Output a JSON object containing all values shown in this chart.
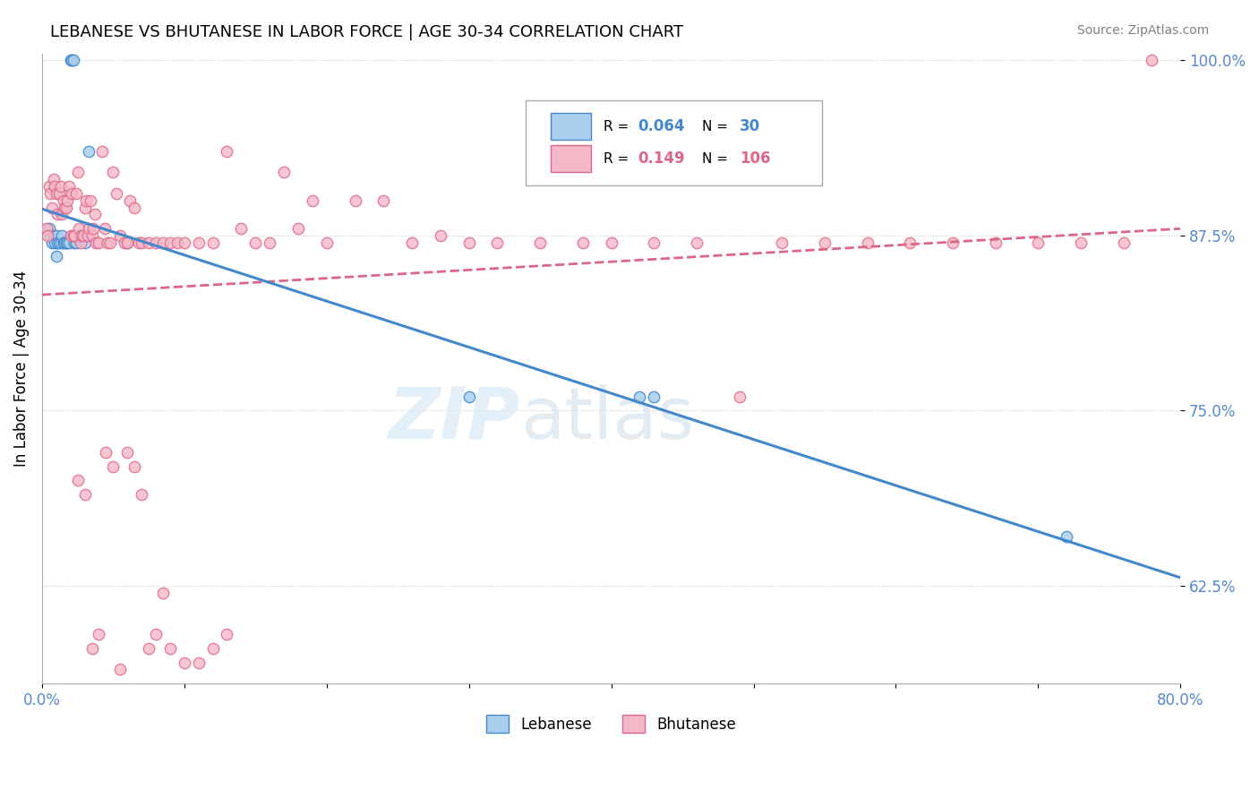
{
  "title": "LEBANESE VS BHUTANESE IN LABOR FORCE | AGE 30-34 CORRELATION CHART",
  "source": "Source: ZipAtlas.com",
  "ylabel": "In Labor Force | Age 30-34",
  "xlim": [
    0.0,
    0.8
  ],
  "ylim": [
    0.555,
    1.005
  ],
  "yticks": [
    0.625,
    0.75,
    0.875,
    1.0
  ],
  "ytick_labels": [
    "62.5%",
    "75.0%",
    "87.5%",
    "100.0%"
  ],
  "blue_color": "#aacfee",
  "pink_color": "#f5b8c8",
  "trend_blue": "#4488cc",
  "trend_pink": "#dd6688",
  "axis_label_color": "#5588cc",
  "blue_x": [
    0.005,
    0.006,
    0.007,
    0.008,
    0.009,
    0.01,
    0.01,
    0.011,
    0.012,
    0.013,
    0.014,
    0.015,
    0.016,
    0.017,
    0.018,
    0.019,
    0.02,
    0.021,
    0.022,
    0.023,
    0.024,
    0.025,
    0.03,
    0.031,
    0.033,
    0.06,
    0.3,
    0.42,
    0.43,
    0.72
  ],
  "blue_y": [
    0.88,
    0.875,
    0.87,
    0.875,
    0.87,
    0.875,
    0.86,
    0.87,
    0.87,
    0.87,
    0.875,
    0.87,
    0.87,
    0.87,
    0.87,
    0.87,
    1.0,
    1.0,
    1.0,
    0.87,
    0.87,
    0.875,
    0.87,
    0.875,
    0.935,
    0.87,
    0.76,
    0.76,
    0.76,
    0.66
  ],
  "pink_x": [
    0.003,
    0.004,
    0.005,
    0.006,
    0.007,
    0.008,
    0.009,
    0.01,
    0.011,
    0.012,
    0.013,
    0.014,
    0.015,
    0.016,
    0.017,
    0.018,
    0.019,
    0.02,
    0.021,
    0.022,
    0.023,
    0.024,
    0.025,
    0.026,
    0.027,
    0.028,
    0.029,
    0.03,
    0.031,
    0.032,
    0.033,
    0.034,
    0.035,
    0.036,
    0.037,
    0.038,
    0.04,
    0.042,
    0.044,
    0.046,
    0.048,
    0.05,
    0.052,
    0.055,
    0.058,
    0.06,
    0.062,
    0.065,
    0.068,
    0.07,
    0.075,
    0.08,
    0.085,
    0.09,
    0.095,
    0.1,
    0.11,
    0.12,
    0.13,
    0.14,
    0.15,
    0.16,
    0.17,
    0.18,
    0.19,
    0.2,
    0.22,
    0.24,
    0.26,
    0.28,
    0.3,
    0.32,
    0.35,
    0.38,
    0.4,
    0.43,
    0.46,
    0.49,
    0.52,
    0.55,
    0.58,
    0.61,
    0.64,
    0.67,
    0.7,
    0.73,
    0.76,
    0.78,
    0.025,
    0.03,
    0.035,
    0.04,
    0.045,
    0.05,
    0.055,
    0.06,
    0.065,
    0.07,
    0.075,
    0.08,
    0.085,
    0.09,
    0.1,
    0.11,
    0.12,
    0.13
  ],
  "pink_y": [
    0.88,
    0.875,
    0.91,
    0.905,
    0.895,
    0.915,
    0.91,
    0.905,
    0.89,
    0.905,
    0.91,
    0.89,
    0.9,
    0.895,
    0.895,
    0.9,
    0.91,
    0.875,
    0.905,
    0.875,
    0.875,
    0.905,
    0.92,
    0.88,
    0.87,
    0.875,
    0.875,
    0.895,
    0.9,
    0.875,
    0.88,
    0.9,
    0.875,
    0.88,
    0.89,
    0.87,
    0.87,
    0.935,
    0.88,
    0.87,
    0.87,
    0.92,
    0.905,
    0.875,
    0.87,
    0.87,
    0.9,
    0.895,
    0.87,
    0.87,
    0.87,
    0.87,
    0.87,
    0.87,
    0.87,
    0.87,
    0.87,
    0.87,
    0.935,
    0.88,
    0.87,
    0.87,
    0.92,
    0.88,
    0.9,
    0.87,
    0.9,
    0.9,
    0.87,
    0.875,
    0.87,
    0.87,
    0.87,
    0.87,
    0.87,
    0.87,
    0.87,
    0.76,
    0.87,
    0.87,
    0.87,
    0.87,
    0.87,
    0.87,
    0.87,
    0.87,
    0.87,
    1.0,
    0.7,
    0.69,
    0.58,
    0.59,
    0.72,
    0.71,
    0.565,
    0.72,
    0.71,
    0.69,
    0.58,
    0.59,
    0.62,
    0.58,
    0.57,
    0.57,
    0.58,
    0.59
  ]
}
